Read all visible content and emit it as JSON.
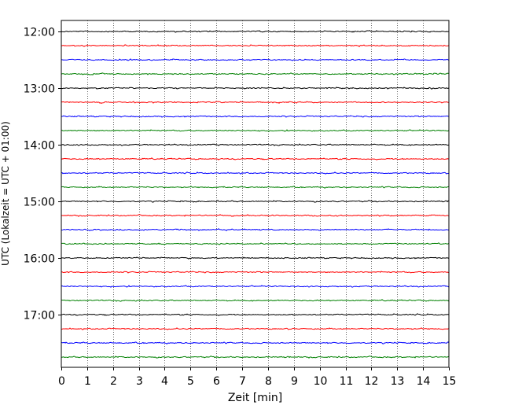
{
  "chart_data": {
    "type": "line",
    "title": "",
    "xlabel": "Zeit  [min]",
    "ylabel": "UTC (Lokalzeit = UTC + 01:00)",
    "xlim": [
      0,
      15
    ],
    "xticks": [
      0,
      1,
      2,
      3,
      4,
      5,
      6,
      7,
      8,
      9,
      10,
      11,
      12,
      13,
      14,
      15
    ],
    "xtick_labels": [
      "0",
      "1",
      "2",
      "3",
      "4",
      "5",
      "6",
      "7",
      "8",
      "9",
      "10",
      "11",
      "12",
      "13",
      "14",
      "15"
    ],
    "ytick_labels": [
      "12:00",
      "13:00",
      "14:00",
      "15:00",
      "16:00",
      "17:00"
    ],
    "grid": "vertical dotted at each minute",
    "trace_colors": [
      "#000000",
      "#ff0000",
      "#0000ff",
      "#008000"
    ],
    "traces": [
      {
        "start": "12:00",
        "color": "#000000"
      },
      {
        "start": "12:15",
        "color": "#ff0000"
      },
      {
        "start": "12:30",
        "color": "#0000ff"
      },
      {
        "start": "12:45",
        "color": "#008000"
      },
      {
        "start": "13:00",
        "color": "#000000"
      },
      {
        "start": "13:15",
        "color": "#ff0000"
      },
      {
        "start": "13:30",
        "color": "#0000ff"
      },
      {
        "start": "13:45",
        "color": "#008000"
      },
      {
        "start": "14:00",
        "color": "#000000"
      },
      {
        "start": "14:15",
        "color": "#ff0000"
      },
      {
        "start": "14:30",
        "color": "#0000ff"
      },
      {
        "start": "14:45",
        "color": "#008000"
      },
      {
        "start": "15:00",
        "color": "#000000"
      },
      {
        "start": "15:15",
        "color": "#ff0000"
      },
      {
        "start": "15:30",
        "color": "#0000ff"
      },
      {
        "start": "15:45",
        "color": "#008000"
      },
      {
        "start": "16:00",
        "color": "#000000"
      },
      {
        "start": "16:15",
        "color": "#ff0000"
      },
      {
        "start": "16:30",
        "color": "#0000ff"
      },
      {
        "start": "16:45",
        "color": "#008000"
      },
      {
        "start": "17:00",
        "color": "#000000"
      },
      {
        "start": "17:15",
        "color": "#ff0000"
      },
      {
        "start": "17:30",
        "color": "#0000ff"
      },
      {
        "start": "17:45",
        "color": "#008000"
      }
    ]
  }
}
